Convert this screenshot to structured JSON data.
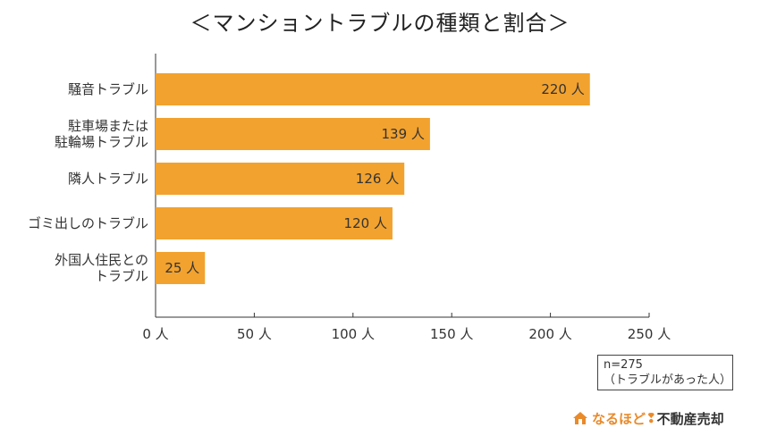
{
  "chart_data": {
    "type": "bar",
    "orientation": "horizontal",
    "title": "＜マンショントラブルの種類と割合＞",
    "categories": [
      [
        "騒音トラブル"
      ],
      [
        "駐車場または",
        "駐輪場トラブル"
      ],
      [
        "隣人トラブル"
      ],
      [
        "ゴミ出しのトラブル"
      ],
      [
        "外国人住民との",
        "トラブル"
      ]
    ],
    "values": [
      220,
      139,
      126,
      120,
      25
    ],
    "value_labels": [
      "220 人",
      "139 人",
      "126 人",
      "120 人",
      "25 人"
    ],
    "unit": "人",
    "xlim": [
      0,
      250
    ],
    "xticks": [
      0,
      50,
      100,
      150,
      200,
      250
    ],
    "xtick_labels": [
      "0 人",
      "50 人",
      "100 人",
      "150 人",
      "200 人",
      "250 人"
    ],
    "grid": false,
    "bar_color": "#f2a22e"
  },
  "note": {
    "line1": "n=275",
    "line2": "（トラブルがあった人）"
  },
  "logo": {
    "icon": "house-icon",
    "text_a": "なるほど",
    "mark": "❢",
    "text_b": "不動産売却",
    "color": "#e98a2b"
  }
}
